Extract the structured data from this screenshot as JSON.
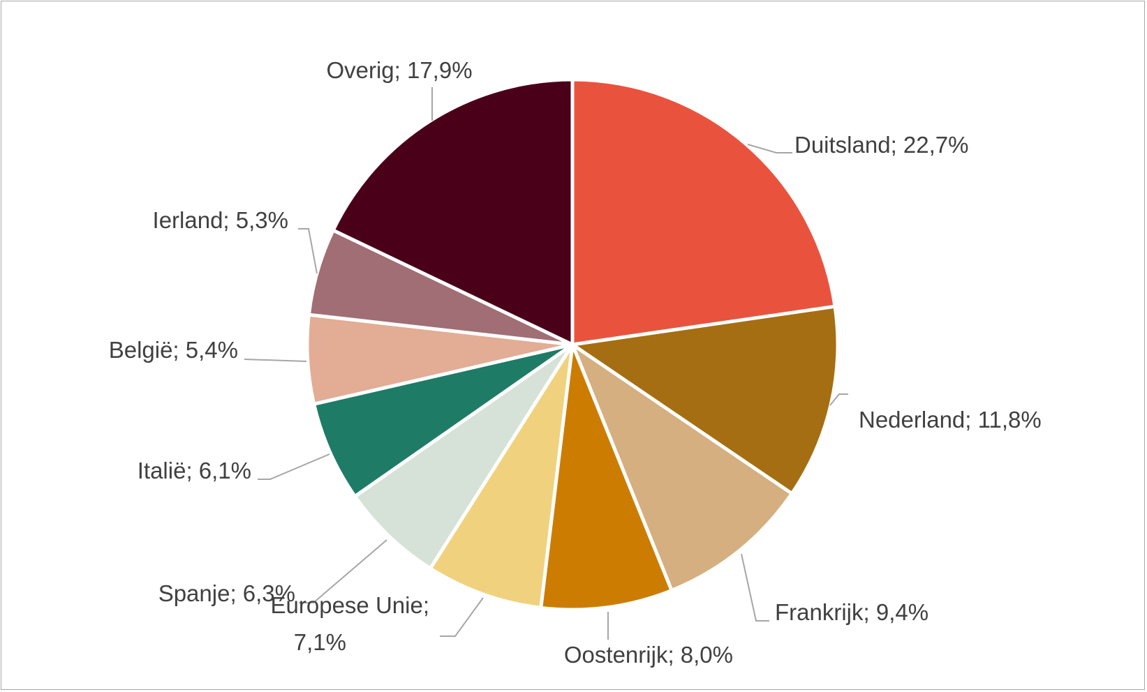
{
  "chart_data": {
    "type": "pie",
    "title": "",
    "start_angle_deg": 0,
    "direction": "clockwise",
    "slices": [
      {
        "label": "Duitsland",
        "text": "Duitsland; 22,7%",
        "value": 22.7,
        "color": "#E9533E"
      },
      {
        "label": "Nederland",
        "text": "Nederland; 11,8%",
        "value": 11.8,
        "color": "#A56E12"
      },
      {
        "label": "Frankrijk",
        "text": "Frankrijk; 9,4%",
        "value": 9.4,
        "color": "#D5AF80"
      },
      {
        "label": "Oostenrijk",
        "text": "Oostenrijk; 8,0%",
        "value": 8.0,
        "color": "#CC7D01"
      },
      {
        "label": "Europese Unie",
        "text_lines": [
          "Europese Unie;",
          "7,1%"
        ],
        "value": 7.1,
        "color": "#F0D27E"
      },
      {
        "label": "Spanje",
        "text": "Spanje; 6,3%",
        "value": 6.3,
        "color": "#D6E2D8"
      },
      {
        "label": "Italië",
        "text": "Italië; 6,1%",
        "value": 6.1,
        "color": "#1E7C66"
      },
      {
        "label": "België",
        "text": "België; 5,4%",
        "value": 5.4,
        "color": "#E3AC95"
      },
      {
        "label": "Ierland",
        "text": "Ierland; 5,3%",
        "value": 5.3,
        "color": "#A06E74"
      },
      {
        "label": "Overig",
        "text": "Overig; 17,9%",
        "value": 17.9,
        "color": "#4A0019"
      }
    ]
  }
}
